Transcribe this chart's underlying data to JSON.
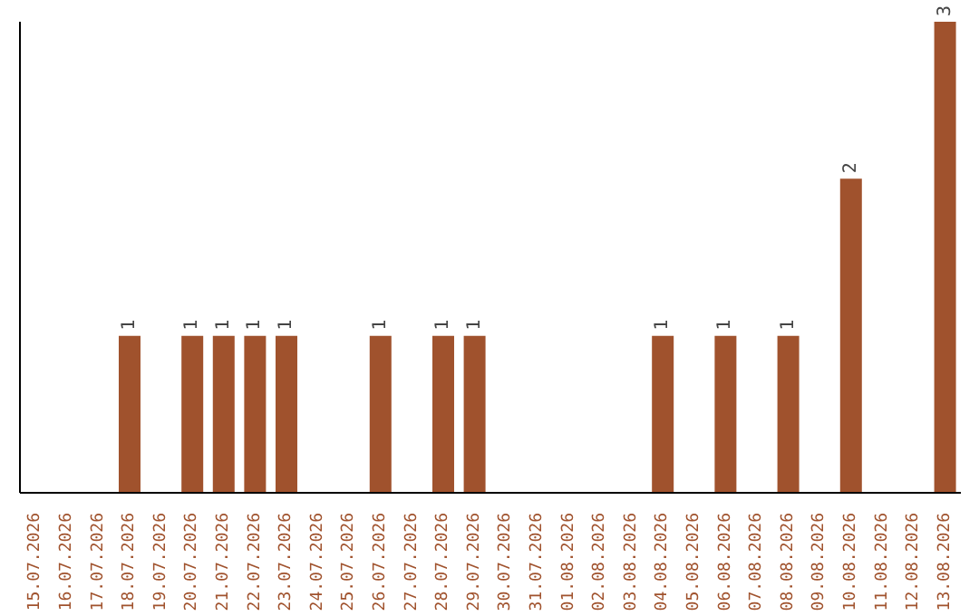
{
  "chart_data": {
    "type": "bar",
    "categories": [
      "15.07.2026",
      "16.07.2026",
      "17.07.2026",
      "18.07.2026",
      "19.07.2026",
      "20.07.2026",
      "21.07.2026",
      "22.07.2026",
      "23.07.2026",
      "24.07.2026",
      "25.07.2026",
      "26.07.2026",
      "27.07.2026",
      "28.07.2026",
      "29.07.2026",
      "30.07.2026",
      "31.07.2026",
      "01.08.2026",
      "02.08.2026",
      "03.08.2026",
      "04.08.2026",
      "05.08.2026",
      "06.08.2026",
      "07.08.2026",
      "08.08.2026",
      "09.08.2026",
      "10.08.2026",
      "11.08.2026",
      "12.08.2026",
      "13.08.2026"
    ],
    "values": [
      null,
      null,
      null,
      1,
      null,
      1,
      1,
      1,
      1,
      null,
      null,
      1,
      null,
      1,
      1,
      null,
      null,
      null,
      null,
      null,
      1,
      null,
      1,
      null,
      1,
      null,
      2,
      null,
      null,
      3
    ],
    "color": "#a0522d",
    "data_labels": true
  }
}
